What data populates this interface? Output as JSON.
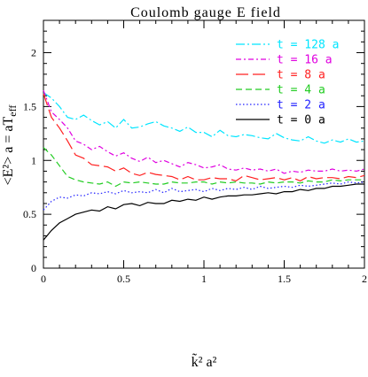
{
  "chart_data": {
    "type": "line",
    "title": "Coulomb gauge E field",
    "xlabel": "k̃² a²",
    "ylabel": "<E²> a = aT_eff",
    "xlim": [
      0,
      2
    ],
    "ylim": [
      0,
      2.3
    ],
    "x_ticks": [
      "0",
      "0.5",
      "1",
      "1.5",
      "2"
    ],
    "y_ticks": [
      "0",
      "0.5",
      "1",
      "1.5",
      "2"
    ],
    "legend_position": "top-right",
    "grid": false,
    "series": [
      {
        "name": "t = 128 a",
        "color": "#00e5ff",
        "dash": "10,3,2,3",
        "x": [
          0.0,
          0.05,
          0.1,
          0.15,
          0.2,
          0.25,
          0.3,
          0.35,
          0.4,
          0.45,
          0.5,
          0.55,
          0.6,
          0.65,
          0.7,
          0.75,
          0.8,
          0.85,
          0.9,
          0.95,
          1.0,
          1.05,
          1.1,
          1.15,
          1.2,
          1.25,
          1.3,
          1.35,
          1.4,
          1.45,
          1.5,
          1.55,
          1.6,
          1.65,
          1.7,
          1.75,
          1.8,
          1.85,
          1.9,
          1.95,
          2.0
        ],
        "y": [
          1.63,
          1.58,
          1.5,
          1.4,
          1.38,
          1.42,
          1.37,
          1.33,
          1.36,
          1.3,
          1.38,
          1.3,
          1.31,
          1.34,
          1.36,
          1.32,
          1.3,
          1.27,
          1.31,
          1.26,
          1.26,
          1.22,
          1.28,
          1.23,
          1.22,
          1.24,
          1.23,
          1.21,
          1.2,
          1.25,
          1.21,
          1.19,
          1.18,
          1.22,
          1.18,
          1.16,
          1.19,
          1.17,
          1.2,
          1.17,
          1.18
        ]
      },
      {
        "name": "t = 16 a",
        "color": "#e000e0",
        "dash": "6,3,2,3",
        "x": [
          0.0,
          0.05,
          0.1,
          0.15,
          0.2,
          0.25,
          0.3,
          0.35,
          0.4,
          0.45,
          0.5,
          0.55,
          0.6,
          0.65,
          0.7,
          0.75,
          0.8,
          0.85,
          0.9,
          0.95,
          1.0,
          1.05,
          1.1,
          1.15,
          1.2,
          1.25,
          1.3,
          1.35,
          1.4,
          1.45,
          1.5,
          1.55,
          1.6,
          1.65,
          1.7,
          1.75,
          1.8,
          1.85,
          1.9,
          1.95,
          2.0
        ],
        "y": [
          1.65,
          1.45,
          1.38,
          1.3,
          1.18,
          1.15,
          1.1,
          1.13,
          1.08,
          1.04,
          1.07,
          1.02,
          0.99,
          1.03,
          0.98,
          1.0,
          0.97,
          0.94,
          0.98,
          0.96,
          0.93,
          0.94,
          0.96,
          0.92,
          0.91,
          0.93,
          0.91,
          0.92,
          0.9,
          0.92,
          0.88,
          0.9,
          0.89,
          0.91,
          0.9,
          0.9,
          0.92,
          0.9,
          0.91,
          0.9,
          0.92
        ]
      },
      {
        "name": "t = 8 a",
        "color": "#ff2020",
        "dash": "14,5",
        "x": [
          0.0,
          0.05,
          0.1,
          0.15,
          0.2,
          0.25,
          0.3,
          0.35,
          0.4,
          0.45,
          0.5,
          0.55,
          0.6,
          0.65,
          0.7,
          0.75,
          0.8,
          0.85,
          0.9,
          0.95,
          1.0,
          1.05,
          1.1,
          1.15,
          1.2,
          1.25,
          1.3,
          1.35,
          1.4,
          1.45,
          1.5,
          1.55,
          1.6,
          1.65,
          1.7,
          1.75,
          1.8,
          1.85,
          1.9,
          1.95,
          2.0
        ],
        "y": [
          1.62,
          1.4,
          1.3,
          1.18,
          1.05,
          1.02,
          0.96,
          0.95,
          0.94,
          0.9,
          0.93,
          0.88,
          0.86,
          0.89,
          0.87,
          0.86,
          0.85,
          0.82,
          0.85,
          0.82,
          0.82,
          0.84,
          0.83,
          0.83,
          0.81,
          0.86,
          0.84,
          0.82,
          0.83,
          0.84,
          0.82,
          0.84,
          0.81,
          0.85,
          0.83,
          0.84,
          0.84,
          0.83,
          0.85,
          0.84,
          0.86
        ]
      },
      {
        "name": "t = 4 a",
        "color": "#22cc22",
        "dash": "7,4",
        "x": [
          0.0,
          0.05,
          0.1,
          0.15,
          0.2,
          0.25,
          0.3,
          0.35,
          0.4,
          0.45,
          0.5,
          0.55,
          0.6,
          0.65,
          0.7,
          0.75,
          0.8,
          0.85,
          0.9,
          0.95,
          1.0,
          1.05,
          1.1,
          1.15,
          1.2,
          1.25,
          1.3,
          1.35,
          1.4,
          1.45,
          1.5,
          1.55,
          1.6,
          1.65,
          1.7,
          1.75,
          1.8,
          1.85,
          1.9,
          1.95,
          2.0
        ],
        "y": [
          1.12,
          1.05,
          0.95,
          0.85,
          0.82,
          0.8,
          0.79,
          0.78,
          0.8,
          0.76,
          0.8,
          0.79,
          0.8,
          0.79,
          0.78,
          0.78,
          0.8,
          0.79,
          0.79,
          0.8,
          0.8,
          0.78,
          0.8,
          0.79,
          0.8,
          0.79,
          0.79,
          0.78,
          0.8,
          0.79,
          0.8,
          0.8,
          0.79,
          0.81,
          0.8,
          0.8,
          0.82,
          0.81,
          0.82,
          0.82,
          0.82
        ]
      },
      {
        "name": "t = 2 a",
        "color": "#2222ff",
        "dash": "1.5,2.5",
        "x": [
          0.0,
          0.05,
          0.1,
          0.15,
          0.2,
          0.25,
          0.3,
          0.35,
          0.4,
          0.45,
          0.5,
          0.55,
          0.6,
          0.65,
          0.7,
          0.75,
          0.8,
          0.85,
          0.9,
          0.95,
          1.0,
          1.05,
          1.1,
          1.15,
          1.2,
          1.25,
          1.3,
          1.35,
          1.4,
          1.45,
          1.5,
          1.55,
          1.6,
          1.65,
          1.7,
          1.75,
          1.8,
          1.85,
          1.9,
          1.95,
          2.0
        ],
        "y": [
          0.54,
          0.62,
          0.66,
          0.65,
          0.68,
          0.67,
          0.7,
          0.69,
          0.71,
          0.69,
          0.72,
          0.7,
          0.71,
          0.7,
          0.73,
          0.7,
          0.74,
          0.71,
          0.72,
          0.73,
          0.71,
          0.74,
          0.72,
          0.74,
          0.73,
          0.75,
          0.73,
          0.76,
          0.74,
          0.75,
          0.76,
          0.75,
          0.77,
          0.76,
          0.77,
          0.78,
          0.79,
          0.78,
          0.8,
          0.79,
          0.8
        ]
      },
      {
        "name": "t = 0 a",
        "color": "#000000",
        "dash": "",
        "x": [
          0.0,
          0.05,
          0.1,
          0.15,
          0.2,
          0.25,
          0.3,
          0.35,
          0.4,
          0.45,
          0.5,
          0.55,
          0.6,
          0.65,
          0.7,
          0.75,
          0.8,
          0.85,
          0.9,
          0.95,
          1.0,
          1.05,
          1.1,
          1.15,
          1.2,
          1.25,
          1.3,
          1.35,
          1.4,
          1.45,
          1.5,
          1.55,
          1.6,
          1.65,
          1.7,
          1.75,
          1.8,
          1.85,
          1.9,
          1.95,
          2.0
        ],
        "y": [
          0.26,
          0.35,
          0.42,
          0.46,
          0.5,
          0.52,
          0.54,
          0.53,
          0.57,
          0.55,
          0.59,
          0.6,
          0.58,
          0.61,
          0.6,
          0.6,
          0.63,
          0.62,
          0.64,
          0.63,
          0.66,
          0.64,
          0.66,
          0.67,
          0.67,
          0.68,
          0.68,
          0.69,
          0.7,
          0.69,
          0.71,
          0.71,
          0.73,
          0.72,
          0.74,
          0.74,
          0.76,
          0.76,
          0.77,
          0.78,
          0.78
        ]
      }
    ]
  }
}
